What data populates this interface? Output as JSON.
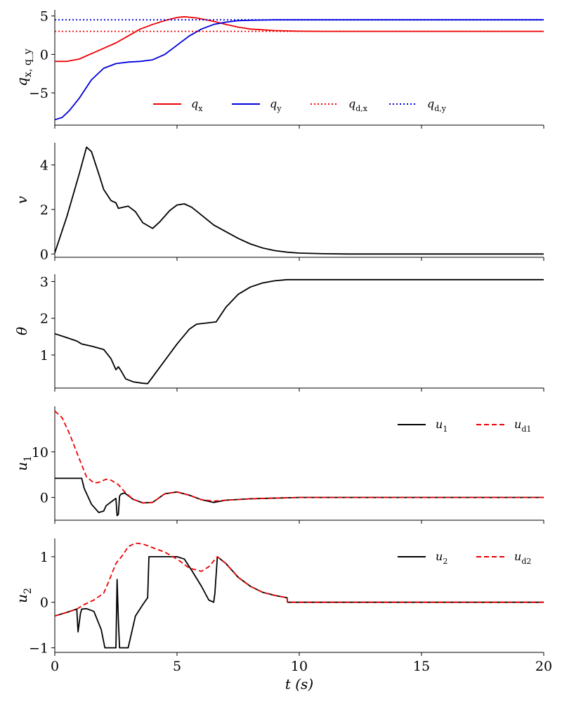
{
  "figure": {
    "xlabel": "t (s)"
  },
  "chart_data": [
    {
      "type": "line",
      "ylabel": "q_x, q_y",
      "xlim": [
        0,
        20
      ],
      "ylim": [
        -9.2,
        5.8
      ],
      "yticks": [
        -5,
        0,
        5
      ],
      "legend": {
        "placement": "bottom-center",
        "entries": [
          {
            "label": "q_x",
            "color": "#ee0000",
            "style": "solid"
          },
          {
            "label": "q_y",
            "color": "#0000dd",
            "style": "solid"
          },
          {
            "label": "q_d,x",
            "color": "#ee0000",
            "style": "dotted"
          },
          {
            "label": "q_d,y",
            "color": "#0000dd",
            "style": "dotted"
          }
        ]
      },
      "series": [
        {
          "name": "q_x",
          "color": "#ee0000",
          "style": "solid",
          "x": [
            0,
            0.5,
            1,
            1.5,
            2,
            2.5,
            3,
            3.5,
            4,
            4.5,
            5,
            5.3,
            5.8,
            6.5,
            7,
            7.5,
            8,
            9,
            10,
            11,
            12,
            14,
            16,
            18,
            20
          ],
          "y": [
            -0.9,
            -0.9,
            -0.6,
            0.1,
            0.8,
            1.5,
            2.4,
            3.3,
            3.9,
            4.4,
            4.8,
            4.9,
            4.75,
            4.3,
            3.9,
            3.55,
            3.3,
            3.1,
            3.02,
            3.0,
            3.0,
            3.0,
            3.0,
            3.0,
            3.0
          ]
        },
        {
          "name": "q_y",
          "color": "#0000dd",
          "style": "solid",
          "x": [
            0,
            0.3,
            0.6,
            1,
            1.5,
            2,
            2.5,
            3,
            3.5,
            4,
            4.5,
            5,
            5.5,
            6,
            6.5,
            7,
            7.5,
            8,
            9,
            10,
            12,
            14,
            16,
            18,
            20
          ],
          "y": [
            -8.5,
            -8.2,
            -7.3,
            -5.7,
            -3.3,
            -1.8,
            -1.2,
            -1.0,
            -0.9,
            -0.7,
            0.0,
            1.2,
            2.4,
            3.3,
            3.9,
            4.2,
            4.4,
            4.45,
            4.5,
            4.5,
            4.5,
            4.5,
            4.5,
            4.5,
            4.5
          ]
        },
        {
          "name": "q_d,x",
          "color": "#ee0000",
          "style": "dotted",
          "x": [
            0,
            20
          ],
          "y": [
            3.0,
            3.0
          ]
        },
        {
          "name": "q_d,y",
          "color": "#0000dd",
          "style": "dotted",
          "x": [
            0,
            20
          ],
          "y": [
            4.5,
            4.5
          ]
        }
      ]
    },
    {
      "type": "line",
      "ylabel": "v",
      "xlim": [
        0,
        20
      ],
      "ylim": [
        -0.15,
        5.0
      ],
      "yticks": [
        0,
        2,
        4
      ],
      "series": [
        {
          "color": "#000000",
          "style": "solid",
          "x": [
            0,
            0.5,
            1,
            1.3,
            1.5,
            1.8,
            2,
            2.3,
            2.5,
            2.6,
            2.8,
            3,
            3.3,
            3.6,
            4,
            4.3,
            4.7,
            5,
            5.3,
            5.6,
            6,
            6.5,
            7,
            7.5,
            8,
            8.5,
            9,
            9.5,
            10,
            11,
            12,
            14,
            16,
            18,
            20
          ],
          "y": [
            0.05,
            1.7,
            3.6,
            4.8,
            4.6,
            3.6,
            2.9,
            2.4,
            2.3,
            2.05,
            2.1,
            2.15,
            1.9,
            1.4,
            1.15,
            1.45,
            1.95,
            2.2,
            2.25,
            2.1,
            1.75,
            1.3,
            1.0,
            0.7,
            0.45,
            0.27,
            0.15,
            0.08,
            0.04,
            0.01,
            0.0,
            0.0,
            0.0,
            0.0,
            0.0
          ]
        }
      ]
    },
    {
      "type": "line",
      "ylabel": "θ",
      "xlim": [
        0,
        20
      ],
      "ylim": [
        0.1,
        3.2
      ],
      "yticks": [
        1,
        2,
        3
      ],
      "series": [
        {
          "color": "#000000",
          "style": "solid",
          "x": [
            0,
            0.5,
            0.9,
            1.1,
            1.5,
            2.0,
            2.3,
            2.5,
            2.6,
            2.7,
            2.9,
            3.2,
            3.6,
            3.8,
            4.0,
            4.5,
            5.0,
            5.5,
            5.8,
            6.2,
            6.6,
            7.0,
            7.5,
            8.0,
            8.5,
            9.0,
            9.5,
            10,
            12,
            14,
            16,
            18,
            20
          ],
          "y": [
            1.58,
            1.47,
            1.38,
            1.3,
            1.24,
            1.15,
            0.9,
            0.6,
            0.68,
            0.58,
            0.35,
            0.27,
            0.23,
            0.22,
            0.4,
            0.85,
            1.3,
            1.7,
            1.84,
            1.87,
            1.9,
            2.3,
            2.65,
            2.85,
            2.96,
            3.02,
            3.05,
            3.05,
            3.05,
            3.05,
            3.05,
            3.05,
            3.05
          ]
        }
      ]
    },
    {
      "type": "line",
      "ylabel": "u_1",
      "xlim": [
        0,
        20
      ],
      "ylim": [
        -5,
        20
      ],
      "yticks": [
        0,
        10
      ],
      "legend": {
        "placement": "top-right",
        "entries": [
          {
            "label": "u_1",
            "color": "#000000",
            "style": "solid"
          },
          {
            "label": "u_d1",
            "color": "#ee0000",
            "style": "dashed"
          }
        ]
      },
      "series": [
        {
          "name": "u_1",
          "color": "#000000",
          "style": "solid",
          "x": [
            0,
            1.1,
            1.2,
            1.5,
            1.8,
            2.0,
            2.1,
            2.5,
            2.55,
            2.6,
            2.65,
            2.7,
            2.85,
            3.2,
            3.6,
            4.0,
            4.5,
            5.0,
            5.5,
            6.0,
            6.5,
            7.0,
            8.0,
            10,
            12,
            14,
            16,
            18,
            20
          ],
          "y": [
            4.2,
            4.2,
            2.0,
            -1.5,
            -3.3,
            -3.0,
            -1.8,
            -0.2,
            -4.0,
            -3.7,
            0.3,
            0.7,
            1.0,
            -0.4,
            -1.2,
            -1.1,
            0.8,
            1.2,
            0.5,
            -0.5,
            -1.1,
            -0.6,
            -0.3,
            0.0,
            0.0,
            0.0,
            0.0,
            0.0,
            0.0
          ]
        },
        {
          "name": "u_d1",
          "color": "#ee0000",
          "style": "dashed",
          "x": [
            0,
            0.3,
            0.6,
            1.0,
            1.3,
            1.6,
            1.8,
            2.1,
            2.3,
            2.6,
            2.9,
            3.2,
            3.6,
            4.0,
            4.5,
            5.0,
            5.5,
            6.0,
            6.5,
            7.0,
            8.0,
            10,
            12,
            14,
            16,
            18,
            20
          ],
          "y": [
            19.0,
            17.5,
            14.0,
            8.5,
            4.5,
            3.2,
            3.3,
            4.0,
            3.8,
            2.8,
            1.0,
            -0.4,
            -1.2,
            -1.1,
            0.8,
            1.2,
            0.5,
            -0.5,
            -0.8,
            -0.6,
            -0.3,
            0.0,
            0.0,
            0.0,
            0.0,
            0.0,
            0.0
          ]
        }
      ]
    },
    {
      "type": "line",
      "ylabel": "u_2",
      "xlim": [
        0,
        20
      ],
      "ylim": [
        -1.1,
        1.4
      ],
      "yticks": [
        -1,
        0,
        1
      ],
      "legend": {
        "placement": "top-right",
        "entries": [
          {
            "label": "u_2",
            "color": "#000000",
            "style": "solid"
          },
          {
            "label": "u_d2",
            "color": "#ee0000",
            "style": "dashed"
          }
        ]
      },
      "series": [
        {
          "name": "u_2",
          "color": "#000000",
          "style": "solid",
          "x": [
            0,
            0.5,
            0.9,
            0.95,
            1.0,
            1.05,
            1.1,
            1.3,
            1.6,
            1.9,
            2.05,
            2.1,
            2.15,
            2.5,
            2.55,
            2.6,
            2.65,
            2.7,
            2.8,
            3.0,
            3.3,
            3.6,
            3.8,
            3.85,
            4.0,
            4.5,
            5.0,
            5.3,
            5.6,
            6.0,
            6.3,
            6.5,
            6.55,
            6.65,
            7.0,
            7.5,
            8.0,
            8.5,
            9.0,
            9.5,
            9.52,
            10,
            12,
            14,
            16,
            18,
            20
          ],
          "y": [
            -0.3,
            -0.22,
            -0.15,
            -0.65,
            -0.45,
            -0.25,
            -0.15,
            -0.14,
            -0.2,
            -0.6,
            -1.0,
            -1.0,
            -1.0,
            -1.0,
            0.5,
            -0.4,
            -1.0,
            -1.0,
            -1.0,
            -1.0,
            -0.3,
            -0.05,
            0.1,
            1.0,
            1.0,
            1.0,
            1.0,
            0.95,
            0.7,
            0.35,
            0.05,
            0.0,
            0.2,
            1.0,
            0.85,
            0.55,
            0.35,
            0.22,
            0.15,
            0.1,
            0.0,
            0.0,
            0.0,
            0.0,
            0.0,
            0.0,
            0.0
          ]
        },
        {
          "name": "u_d2",
          "color": "#ee0000",
          "style": "dashed",
          "x": [
            0,
            0.5,
            0.9,
            1.2,
            1.6,
            2.0,
            2.2,
            2.5,
            2.8,
            3.0,
            3.3,
            3.6,
            4.0,
            4.5,
            5.0,
            5.5,
            6.0,
            6.3,
            6.65,
            7.0,
            7.5,
            8.0,
            8.5,
            9.0,
            9.5,
            9.52,
            10,
            12,
            14,
            16,
            18,
            20
          ],
          "y": [
            -0.3,
            -0.22,
            -0.15,
            -0.05,
            0.05,
            0.2,
            0.45,
            0.85,
            1.05,
            1.22,
            1.3,
            1.28,
            1.2,
            1.1,
            0.95,
            0.75,
            0.68,
            0.78,
            1.0,
            0.85,
            0.55,
            0.35,
            0.22,
            0.15,
            0.1,
            0.0,
            0.0,
            0.0,
            0.0,
            0.0,
            0.0,
            0.0
          ]
        }
      ]
    }
  ]
}
